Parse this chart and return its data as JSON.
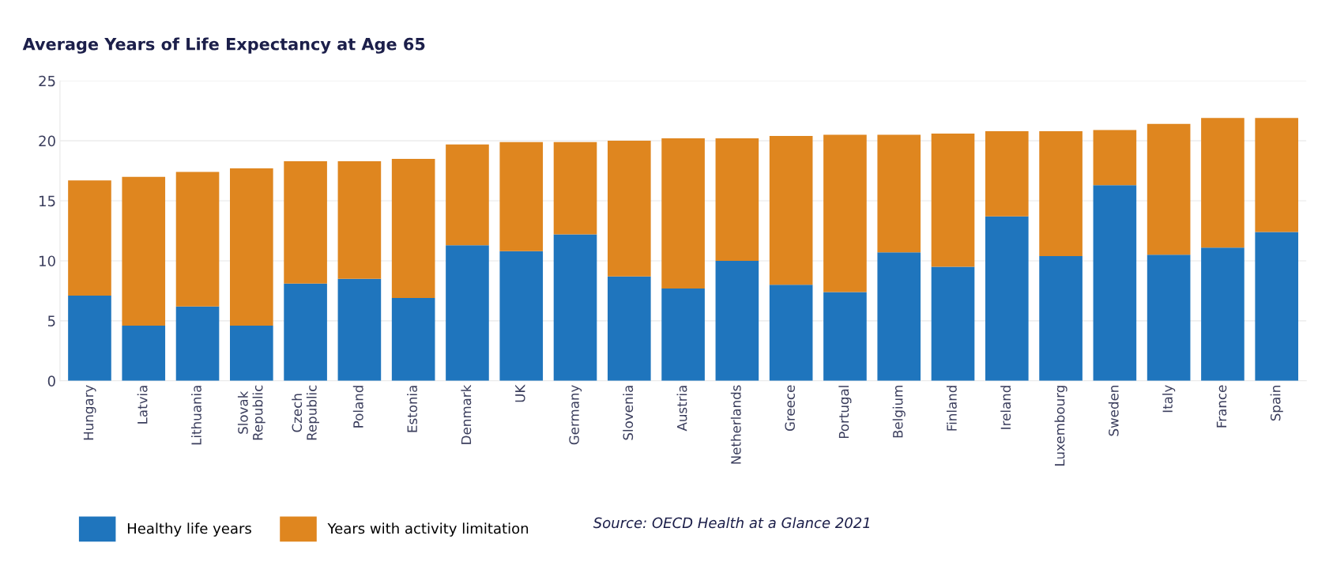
{
  "chart_data": {
    "type": "bar",
    "title": "Average Years of Life Expectancy at Age 65",
    "stacked": true,
    "categories": [
      "Hungary",
      "Latvia",
      "Lithuania",
      "Slovak\nRepublic",
      "Czech\nRepublic",
      "Poland",
      "Estonia",
      "Denmark",
      "UK",
      "Germany",
      "Slovenia",
      "Austria",
      "Netherlands",
      "Greece",
      "Portugal",
      "Belgium",
      "Finland",
      "Ireland",
      "Luxembourg",
      "Sweden",
      "Italy",
      "France",
      "Spain"
    ],
    "series": [
      {
        "name": "Healthy life years",
        "color": "#1f75bd",
        "values": [
          7.1,
          4.6,
          6.2,
          4.6,
          8.1,
          8.5,
          6.9,
          11.3,
          10.8,
          12.2,
          8.7,
          7.7,
          10.0,
          8.0,
          7.4,
          10.7,
          9.5,
          13.7,
          10.4,
          16.3,
          10.5,
          11.1,
          12.4
        ]
      },
      {
        "name": "Years with activity limitation",
        "color": "#df861f",
        "values": [
          9.6,
          12.4,
          11.2,
          13.1,
          10.2,
          9.8,
          11.6,
          8.4,
          9.1,
          7.7,
          11.3,
          12.5,
          10.2,
          12.4,
          13.1,
          9.8,
          11.1,
          7.1,
          10.4,
          4.6,
          10.9,
          10.8,
          9.5
        ]
      }
    ],
    "ylim": [
      0,
      25
    ],
    "yticks": [
      0,
      5,
      10,
      15,
      20,
      25
    ],
    "grid": "y",
    "legend": "bottom left",
    "annotations": [
      "Source: OECD Health at a Glance 2021"
    ]
  }
}
